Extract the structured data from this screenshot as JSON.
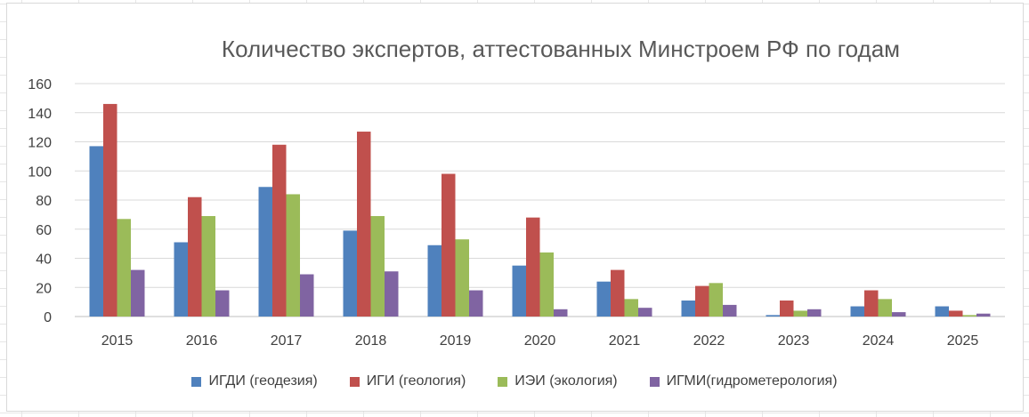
{
  "chart_data": {
    "type": "bar",
    "title": "Количество экспертов, аттестованных Минстроем РФ по годам",
    "categories": [
      "2015",
      "2016",
      "2017",
      "2018",
      "2019",
      "2020",
      "2021",
      "2022",
      "2023",
      "2024",
      "2025"
    ],
    "series": [
      {
        "name": "ИГДИ (геодезия)",
        "color": "#4f81bd",
        "values": [
          117,
          51,
          89,
          59,
          49,
          35,
          24,
          11,
          1,
          7,
          7
        ]
      },
      {
        "name": "ИГИ (геология)",
        "color": "#c0504d",
        "values": [
          146,
          82,
          118,
          127,
          98,
          68,
          32,
          21,
          11,
          18,
          4
        ]
      },
      {
        "name": "ИЭИ (экология)",
        "color": "#9bbb59",
        "values": [
          67,
          69,
          84,
          69,
          53,
          44,
          12,
          23,
          4,
          12,
          1
        ]
      },
      {
        "name": "ИГМИ(гидрометерология)",
        "color": "#8064a2",
        "values": [
          32,
          18,
          29,
          31,
          18,
          5,
          6,
          8,
          5,
          3,
          2
        ]
      }
    ],
    "ylim": [
      0,
      160
    ],
    "yticks": [
      0,
      20,
      40,
      60,
      80,
      100,
      120,
      140,
      160
    ],
    "grid": true,
    "legend_position": "bottom"
  }
}
